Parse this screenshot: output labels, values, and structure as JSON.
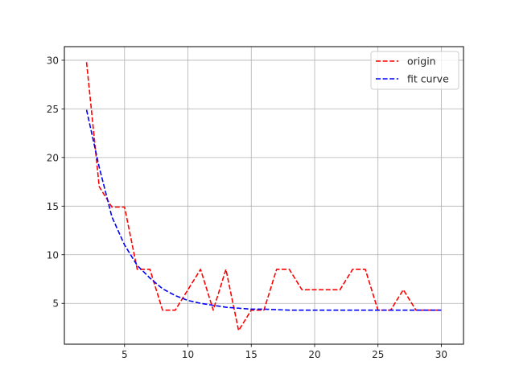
{
  "chart_data": {
    "type": "line",
    "title": "",
    "xlabel": "",
    "ylabel": "",
    "xlim": [
      0.25,
      31.75
    ],
    "ylim": [
      0.8,
      31.4
    ],
    "x_ticks": [
      5,
      10,
      15,
      20,
      25,
      30
    ],
    "y_ticks": [
      5,
      10,
      15,
      20,
      25,
      30
    ],
    "grid": true,
    "legend_position": "top-right",
    "series": [
      {
        "name": "origin",
        "color": "#ff0000",
        "line_style": "dashed",
        "x": [
          2,
          3,
          4,
          5,
          6,
          7,
          8,
          9,
          10,
          11,
          12,
          13,
          14,
          15,
          16,
          17,
          18,
          19,
          20,
          21,
          22,
          23,
          24,
          25,
          26,
          27,
          28,
          29,
          30
        ],
        "y": [
          29.8,
          17.0,
          14.9,
          14.9,
          8.5,
          8.5,
          4.3,
          4.3,
          6.4,
          8.5,
          4.3,
          8.5,
          2.2,
          4.3,
          4.3,
          8.5,
          8.5,
          6.4,
          6.4,
          6.4,
          6.4,
          8.5,
          8.5,
          4.3,
          4.3,
          6.4,
          4.3,
          4.3,
          4.3
        ]
      },
      {
        "name": "fit curve",
        "color": "#0000ff",
        "line_style": "dashed",
        "x": [
          2,
          3,
          4,
          5,
          6,
          7,
          8,
          9,
          10,
          11,
          12,
          13,
          14,
          15,
          16,
          17,
          18,
          19,
          20,
          21,
          22,
          23,
          24,
          25,
          26,
          27,
          28,
          29,
          30
        ],
        "y": [
          24.9,
          19.0,
          13.9,
          11.0,
          8.9,
          7.6,
          6.5,
          5.8,
          5.3,
          5.0,
          4.8,
          4.6,
          4.5,
          4.4,
          4.4,
          4.35,
          4.3,
          4.3,
          4.3,
          4.3,
          4.3,
          4.3,
          4.3,
          4.3,
          4.3,
          4.3,
          4.3,
          4.3,
          4.3
        ]
      }
    ]
  }
}
